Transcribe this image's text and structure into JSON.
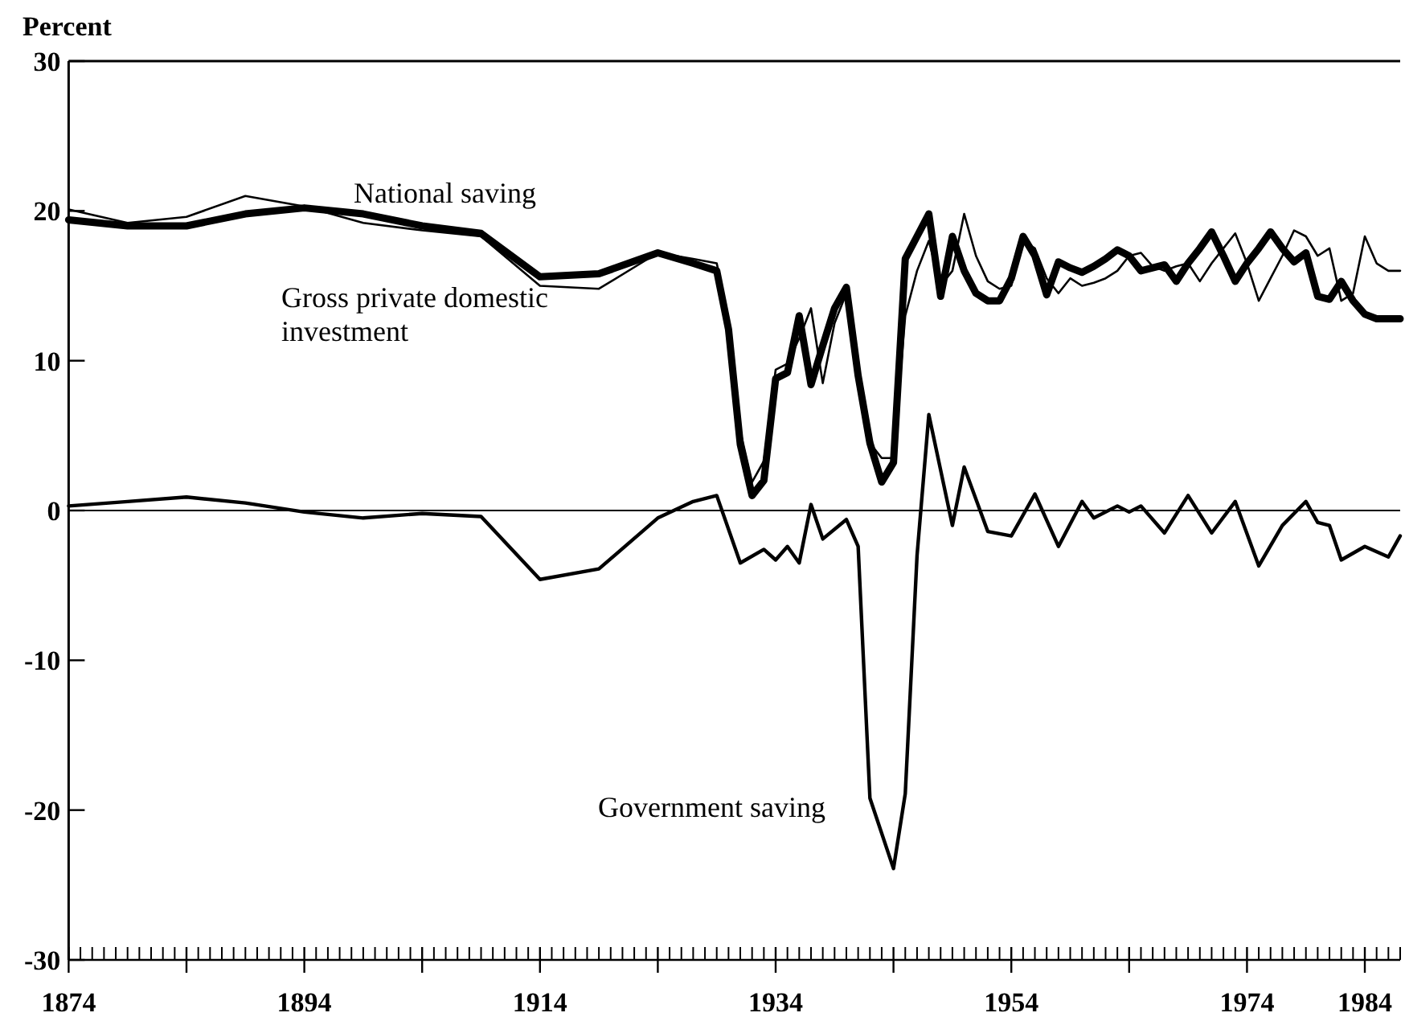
{
  "chart_data": {
    "type": "line",
    "ylabel": "Percent",
    "xlim": [
      1874,
      1987
    ],
    "ylim": [
      -30,
      30
    ],
    "xticks": [
      1874,
      {
        "value": 1884,
        "label": null
      },
      1894,
      {
        "value": 1904,
        "label": null
      },
      1914,
      {
        "value": 1924,
        "label": null
      },
      1934,
      {
        "value": 1944,
        "label": null
      },
      1954,
      {
        "value": 1964,
        "label": null
      },
      1974,
      1984
    ],
    "yticks": [
      -30,
      -20,
      -10,
      0,
      10,
      20,
      30
    ],
    "grid": false,
    "ref_lines": [
      {
        "axis": "y",
        "value": 0,
        "color": "#000000"
      }
    ],
    "series": [
      {
        "name": "National saving",
        "color": "#000000",
        "x": [
          1874,
          1879,
          1884,
          1889,
          1894,
          1899,
          1904,
          1909,
          1914,
          1919,
          1924,
          1927,
          1929,
          1930,
          1931,
          1932,
          1933,
          1934,
          1935,
          1936,
          1937,
          1938,
          1939,
          1940,
          1941,
          1942,
          1943,
          1944,
          1945,
          1946,
          1947,
          1948,
          1949,
          1950,
          1951,
          1952,
          1953,
          1954,
          1955,
          1956,
          1957,
          1958,
          1959,
          1960,
          1961,
          1962,
          1963,
          1964,
          1965,
          1966,
          1967,
          1968,
          1969,
          1970,
          1971,
          1972,
          1973,
          1974,
          1975,
          1976,
          1977,
          1978,
          1979,
          1980,
          1981,
          1982,
          1983,
          1984,
          1985,
          1986,
          1987
        ],
        "values": [
          20.1,
          19.2,
          19.6,
          21.0,
          20.3,
          19.2,
          18.7,
          18.3,
          15.0,
          14.8,
          17.2,
          16.8,
          16.5,
          12.8,
          5.3,
          1.9,
          3.3,
          9.4,
          9.8,
          11.5,
          13.5,
          8.5,
          12.5,
          14.5,
          9,
          4.5,
          3.5,
          3.5,
          13,
          16,
          18,
          15,
          16,
          19.8,
          17,
          15.3,
          14.8,
          15,
          18,
          17.5,
          15.5,
          14.5,
          15.5,
          15,
          15.2,
          15.5,
          16,
          17,
          17.2,
          16.3,
          16,
          16.3,
          16.5,
          15.3,
          16.5,
          17.5,
          18.5,
          16.5,
          14,
          15.5,
          17,
          18.7,
          18.3,
          17,
          17.5,
          14,
          14.5,
          18.3,
          16.5,
          16,
          16
        ]
      },
      {
        "name": "Gross private domestic investment",
        "color": "#000000",
        "x": [
          1874,
          1879,
          1884,
          1889,
          1894,
          1899,
          1904,
          1909,
          1914,
          1919,
          1924,
          1927,
          1929,
          1930,
          1931,
          1932,
          1933,
          1934,
          1935,
          1936,
          1937,
          1938,
          1939,
          1940,
          1941,
          1942,
          1943,
          1944,
          1945,
          1946,
          1947,
          1948,
          1949,
          1950,
          1951,
          1952,
          1953,
          1954,
          1955,
          1956,
          1957,
          1958,
          1959,
          1960,
          1961,
          1962,
          1963,
          1964,
          1965,
          1966,
          1967,
          1968,
          1969,
          1970,
          1971,
          1972,
          1973,
          1974,
          1975,
          1976,
          1977,
          1978,
          1979,
          1980,
          1981,
          1982,
          1983,
          1984,
          1985,
          1986,
          1987
        ],
        "values": [
          19.4,
          19.0,
          19.0,
          19.8,
          20.2,
          19.8,
          19.0,
          18.5,
          15.6,
          15.8,
          17.2,
          16.5,
          16,
          12.1,
          4.4,
          1.0,
          2.0,
          8.8,
          9.2,
          13,
          8.4,
          11,
          13.5,
          14.9,
          9,
          4.5,
          1.9,
          3.2,
          16.8,
          18.3,
          19.8,
          14.3,
          18.3,
          16,
          14.5,
          14,
          14,
          15.5,
          18.3,
          17,
          14.4,
          16.6,
          16.2,
          15.9,
          16.3,
          16.8,
          17.4,
          17,
          16,
          16.2,
          16.4,
          15.3,
          16.5,
          17.5,
          18.6,
          17,
          15.3,
          16.5,
          17.5,
          18.6,
          17.5,
          16.6,
          17.2,
          14.3,
          14.1,
          15.3,
          14,
          13.1,
          12.8,
          12.8,
          12.8
        ]
      },
      {
        "name": "Government saving",
        "color": "#000000",
        "x": [
          1874,
          1879,
          1884,
          1889,
          1894,
          1899,
          1904,
          1909,
          1914,
          1919,
          1924,
          1927,
          1929,
          1931,
          1933,
          1934,
          1935,
          1936,
          1937,
          1938,
          1940,
          1941,
          1942,
          1944,
          1945,
          1946,
          1947,
          1949,
          1950,
          1952,
          1954,
          1956,
          1958,
          1960,
          1961,
          1963,
          1964,
          1965,
          1967,
          1969,
          1971,
          1973,
          1975,
          1977,
          1979,
          1980,
          1981,
          1982,
          1984,
          1986,
          1987
        ],
        "values": [
          0.3,
          0.6,
          0.9,
          0.5,
          -0.1,
          -0.5,
          -0.2,
          -0.4,
          -4.6,
          -3.9,
          -0.5,
          0.6,
          1.0,
          -3.5,
          -2.6,
          -3.3,
          -2.4,
          -3.5,
          0.4,
          -1.9,
          -0.6,
          -2.4,
          -19.2,
          -23.9,
          -18.9,
          -3,
          6.4,
          -1.0,
          2.9,
          -1.4,
          -1.7,
          1.1,
          -2.4,
          0.6,
          -0.5,
          0.3,
          -0.1,
          0.3,
          -1.5,
          1.0,
          -1.5,
          0.6,
          -3.7,
          -1.0,
          0.6,
          -0.8,
          -1.0,
          -3.3,
          -2.4,
          -3.1,
          -1.7
        ]
      }
    ]
  }
}
